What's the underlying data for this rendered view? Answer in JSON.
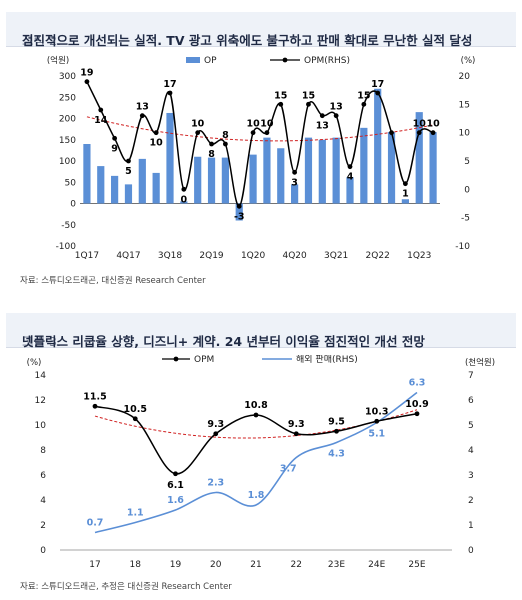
{
  "colors": {
    "bar": "#5b8fd6",
    "black": "#000000",
    "trend": "#d02020",
    "blue_line": "#5b8fd6",
    "title_bg": "#eef2f8"
  },
  "chart_data": [
    {
      "type": "bar",
      "figure_label": "그림 2.",
      "title": "점진적으로 개선되는 실적. TV 광고 위축에도 불구하고 판매 확대로 무난한 실적 달성",
      "yleft_unit": "(억원)",
      "yright_unit": "(%)",
      "ylim_left": [
        -100,
        300
      ],
      "ylim_right": [
        -10,
        20
      ],
      "yticks_left": [
        "300",
        "250",
        "200",
        "150",
        "100",
        "50",
        "0",
        "-50",
        "-100"
      ],
      "yticks_right": [
        "20",
        "15",
        "10",
        "5",
        "0",
        "-5",
        "-10"
      ],
      "xtick_labels": [
        "1Q17",
        "4Q17",
        "3Q18",
        "2Q19",
        "1Q20",
        "4Q20",
        "3Q21",
        "2Q22",
        "1Q23"
      ],
      "legend_bar": "OP",
      "legend_line": "OPM(RHS)",
      "categories": [
        "1Q17",
        "2Q17",
        "3Q17",
        "4Q17",
        "1Q18",
        "2Q18",
        "3Q18",
        "4Q18",
        "1Q19",
        "2Q19",
        "3Q19",
        "4Q19",
        "1Q20",
        "2Q20",
        "3Q20",
        "4Q20",
        "1Q21",
        "2Q21",
        "3Q21",
        "4Q21",
        "1Q22",
        "2Q22",
        "3Q22",
        "4Q22",
        "1Q23",
        "2Q23"
      ],
      "op_values": [
        140,
        88,
        65,
        45,
        105,
        72,
        213,
        5,
        110,
        108,
        108,
        -40,
        115,
        155,
        130,
        45,
        155,
        150,
        155,
        62,
        178,
        270,
        168,
        10,
        215,
        168
      ],
      "opm_values": [
        19,
        14,
        9,
        5,
        13,
        10,
        17,
        0,
        10,
        8,
        8,
        -3,
        10,
        10,
        15,
        3,
        15,
        13,
        13,
        4,
        15,
        17,
        10,
        1,
        10,
        10
      ],
      "opm_labels": [
        "19",
        "14",
        "9",
        "5",
        "13",
        "10",
        "17",
        "0",
        "10",
        "8",
        "8",
        "-3",
        "10",
        "10",
        "15",
        "3",
        "15",
        "13",
        "13",
        "4",
        "15",
        "17",
        "",
        "1",
        "10",
        "10"
      ],
      "source": "자료: 스튜디오드래곤, 대신증권 Research Center"
    },
    {
      "type": "line",
      "figure_label": "그림 3.",
      "title": "넷플릭스 리쿱율 상향, 디즈니+ 계약. 24 년부터 이익율 점진적인 개선 전망",
      "yleft_unit": "(%)",
      "yright_unit": "(천억원)",
      "ylim_left": [
        0,
        14
      ],
      "ylim_right": [
        0,
        7
      ],
      "yticks_left": [
        "14",
        "12",
        "10",
        "8",
        "6",
        "4",
        "2",
        "0"
      ],
      "yticks_right": [
        "7",
        "6",
        "5",
        "4",
        "3",
        "2",
        "1",
        "0"
      ],
      "categories": [
        "17",
        "18",
        "19",
        "20",
        "21",
        "22",
        "23E",
        "24E",
        "25E"
      ],
      "series": [
        {
          "name": "OPM",
          "axis": "left",
          "values": [
            11.5,
            10.5,
            6.1,
            9.3,
            10.8,
            9.3,
            9.5,
            10.3,
            10.9
          ],
          "labels": [
            "11.5",
            "10.5",
            "6.1",
            "9.3",
            "10.8",
            "9.3",
            "9.5",
            "10.3",
            "10.9"
          ]
        },
        {
          "name": "해외 판매(RHS)",
          "axis": "right",
          "values": [
            0.7,
            1.1,
            1.6,
            2.3,
            1.8,
            3.7,
            4.3,
            5.1,
            6.3
          ],
          "labels": [
            "0.7",
            "1.1",
            "1.6",
            "2.3",
            "1.8",
            "3.7",
            "4.3",
            "5.1",
            "6.3"
          ]
        }
      ],
      "source": "자료: 스튜디오드래곤, 추정은 대신증권 Research Center"
    }
  ]
}
